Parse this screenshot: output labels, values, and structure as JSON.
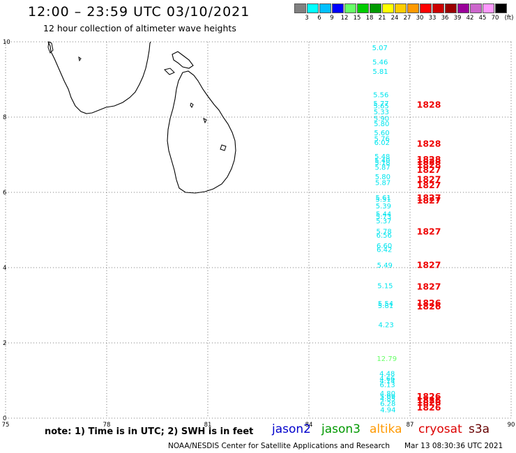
{
  "header": {
    "title": "12:00 – 23:59 UTC 03/10/2021",
    "subtitle": "12 hour collection of altimeter wave heights"
  },
  "legend": {
    "unit": "(ft)",
    "bins": [
      {
        "label": "3",
        "color": "#808080"
      },
      {
        "label": "6",
        "color": "#00ffff"
      },
      {
        "label": "9",
        "color": "#00bfff"
      },
      {
        "label": "12",
        "color": "#0000ff"
      },
      {
        "label": "15",
        "color": "#66ff66"
      },
      {
        "label": "18",
        "color": "#00cc00"
      },
      {
        "label": "21",
        "color": "#009900"
      },
      {
        "label": "24",
        "color": "#ffff00"
      },
      {
        "label": "27",
        "color": "#ffcc00"
      },
      {
        "label": "30",
        "color": "#ff9900"
      },
      {
        "label": "33",
        "color": "#ff0000"
      },
      {
        "label": "36",
        "color": "#cc0000"
      },
      {
        "label": "39",
        "color": "#990000"
      },
      {
        "label": "42",
        "color": "#990099"
      },
      {
        "label": "45",
        "color": "#cc66cc"
      },
      {
        "label": "70",
        "color": "#ff99ff"
      },
      {
        "label": "",
        "color": "#000000"
      }
    ]
  },
  "axes": {
    "x_ticks": [
      "75",
      "78",
      "81",
      "84",
      "87",
      "90"
    ],
    "y_ticks": [
      "0",
      "2",
      "4",
      "6",
      "8",
      "10"
    ],
    "lon_range": [
      75,
      90
    ],
    "lat_range": [
      0,
      10
    ]
  },
  "observations": [
    {
      "lat": 9.78,
      "value": "5.07",
      "color": "#00e5ee"
    },
    {
      "lat": 9.4,
      "value": "5.46",
      "color": "#00e5ee"
    },
    {
      "lat": 9.15,
      "value": "5.81",
      "color": "#00e5ee"
    },
    {
      "lat": 8.53,
      "value": "5.56",
      "color": "#00e5ee"
    },
    {
      "lat": 8.3,
      "value": "5.77",
      "color": "#00e5ee"
    },
    {
      "lat": 8.23,
      "value": "5.65",
      "color": "#00e5ee"
    },
    {
      "lat": 8.07,
      "value": "5.33",
      "color": "#00e5ee"
    },
    {
      "lat": 7.9,
      "value": "5.90",
      "color": "#00e5ee"
    },
    {
      "lat": 7.76,
      "value": "5.80",
      "color": "#00e5ee"
    },
    {
      "lat": 7.52,
      "value": "5.60",
      "color": "#00e5ee"
    },
    {
      "lat": 7.36,
      "value": "5.76",
      "color": "#00e5ee"
    },
    {
      "lat": 7.26,
      "value": "6.02",
      "color": "#00e5ee"
    },
    {
      "lat": 6.89,
      "value": "5.48",
      "color": "#00e5ee"
    },
    {
      "lat": 6.79,
      "value": "5.40",
      "color": "#00e5ee"
    },
    {
      "lat": 6.73,
      "value": "5.18",
      "color": "#00e5ee"
    },
    {
      "lat": 6.6,
      "value": "5.87",
      "color": "#00e5ee"
    },
    {
      "lat": 6.35,
      "value": "5.80",
      "color": "#00e5ee"
    },
    {
      "lat": 6.19,
      "value": "5.87",
      "color": "#00e5ee"
    },
    {
      "lat": 5.8,
      "value": "5.61",
      "color": "#00e5ee"
    },
    {
      "lat": 5.75,
      "value": "5.51",
      "color": "#00e5ee"
    },
    {
      "lat": 5.57,
      "value": "5.39",
      "color": "#00e5ee"
    },
    {
      "lat": 5.36,
      "value": "5.44",
      "color": "#00e5ee"
    },
    {
      "lat": 5.3,
      "value": "5.73",
      "color": "#00e5ee"
    },
    {
      "lat": 5.18,
      "value": "5.37",
      "color": "#00e5ee"
    },
    {
      "lat": 4.9,
      "value": "5.78",
      "color": "#00e5ee"
    },
    {
      "lat": 4.8,
      "value": "6.56",
      "color": "#00e5ee"
    },
    {
      "lat": 4.52,
      "value": "6.60",
      "color": "#00e5ee"
    },
    {
      "lat": 4.42,
      "value": "6.42",
      "color": "#00e5ee"
    },
    {
      "lat": 4.0,
      "value": "5.49",
      "color": "#00e5ee"
    },
    {
      "lat": 3.45,
      "value": "5.15",
      "color": "#00e5ee"
    },
    {
      "lat": 2.98,
      "value": "5.54",
      "color": "#00e5ee"
    },
    {
      "lat": 2.93,
      "value": "5.81",
      "color": "#00e5ee"
    },
    {
      "lat": 2.42,
      "value": "4.23",
      "color": "#00e5ee"
    },
    {
      "lat": 1.52,
      "value": "12.79",
      "color": "#66ff66"
    },
    {
      "lat": 1.12,
      "value": "4.48",
      "color": "#00e5ee"
    },
    {
      "lat": 0.99,
      "value": "4.66",
      "color": "#00e5ee"
    },
    {
      "lat": 0.93,
      "value": "4.14",
      "color": "#00e5ee"
    },
    {
      "lat": 0.82,
      "value": "6.13",
      "color": "#00e5ee"
    },
    {
      "lat": 0.59,
      "value": "4.80",
      "color": "#00e5ee"
    },
    {
      "lat": 0.51,
      "value": "5.09",
      "color": "#00e5ee"
    },
    {
      "lat": 0.45,
      "value": "4.85",
      "color": "#00e5ee"
    },
    {
      "lat": 0.32,
      "value": "6.28",
      "color": "#00e5ee"
    },
    {
      "lat": 0.16,
      "value": "4.94",
      "color": "#00e5ee"
    }
  ],
  "time_labels": [
    {
      "lat": 8.25,
      "value": "1828"
    },
    {
      "lat": 7.21,
      "value": "1828"
    },
    {
      "lat": 6.8,
      "value": "1828"
    },
    {
      "lat": 6.73,
      "value": "1828"
    },
    {
      "lat": 6.65,
      "value": "1828"
    },
    {
      "lat": 6.52,
      "value": "1827"
    },
    {
      "lat": 6.27,
      "value": "1827"
    },
    {
      "lat": 6.11,
      "value": "1827"
    },
    {
      "lat": 5.78,
      "value": "1827"
    },
    {
      "lat": 5.7,
      "value": "1827"
    },
    {
      "lat": 4.88,
      "value": "1827"
    },
    {
      "lat": 3.99,
      "value": "1827"
    },
    {
      "lat": 3.42,
      "value": "1827"
    },
    {
      "lat": 2.98,
      "value": "1826"
    },
    {
      "lat": 2.89,
      "value": "1826"
    },
    {
      "lat": 0.5,
      "value": "1826"
    },
    {
      "lat": 0.4,
      "value": "1826"
    },
    {
      "lat": 0.33,
      "value": "1826"
    },
    {
      "lat": 0.2,
      "value": "1826"
    }
  ],
  "footer": {
    "note": "note: 1) Time is in UTC; 2) SWH is in feet",
    "satellites": [
      {
        "name": "jason2",
        "color": "#0000cc"
      },
      {
        "name": "jason3",
        "color": "#009900"
      },
      {
        "name": "altika",
        "color": "#ff9900"
      },
      {
        "name": "cryosat",
        "color": "#dd0000"
      },
      {
        "name": "s3a",
        "color": "#660000"
      }
    ],
    "credit": "NOAA/NESDIS Center for Satellite Applications and Research",
    "timestamp": "Mar 13 08:30:36 UTC 2021"
  }
}
